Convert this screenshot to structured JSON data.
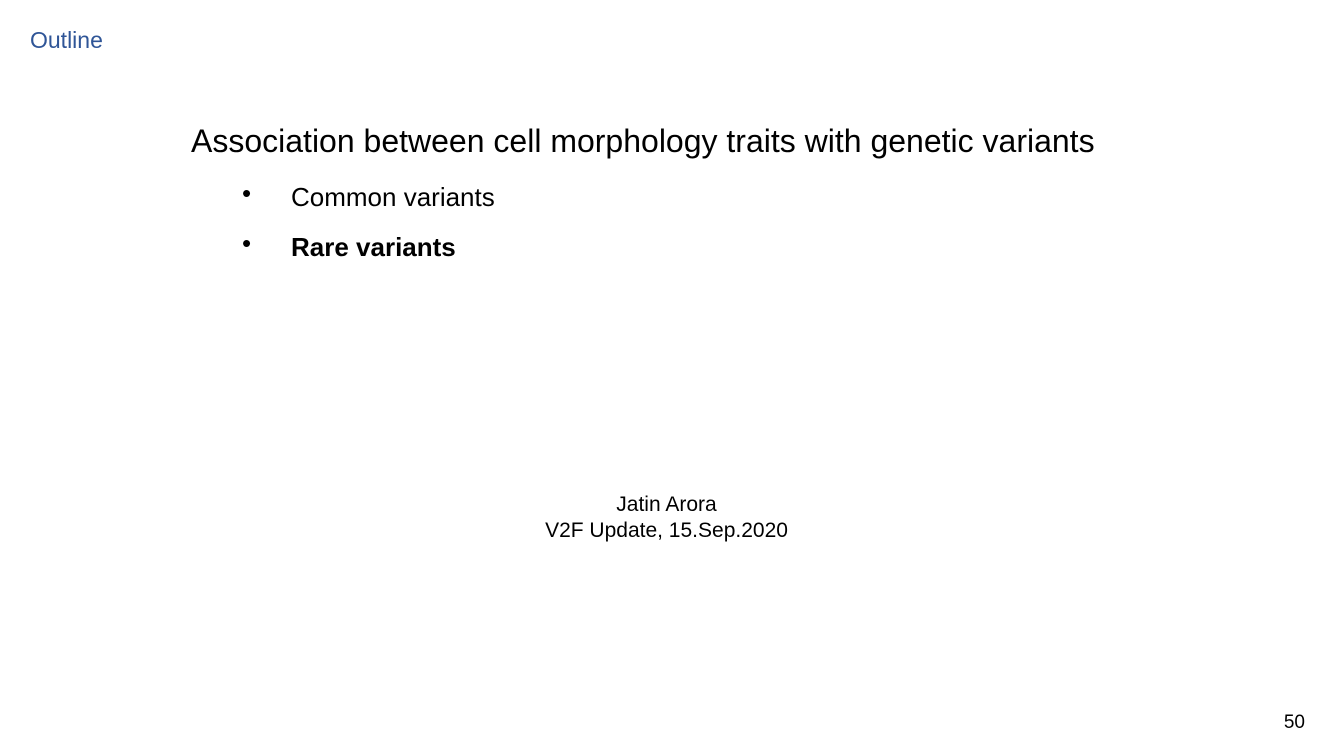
{
  "section_label": "Outline",
  "heading": "Association between cell morphology traits with genetic variants",
  "bullets": [
    {
      "symbol": "•",
      "text": "Common variants",
      "emphasized": false
    },
    {
      "symbol": "•",
      "text": "Rare variants",
      "emphasized": true
    }
  ],
  "footer": {
    "author": "Jatin Arora",
    "event": "V2F Update, 15.Sep.2020"
  },
  "page_number": "50",
  "colors": {
    "section_label": "#2f5597",
    "text": "#000000",
    "background": "#ffffff"
  }
}
